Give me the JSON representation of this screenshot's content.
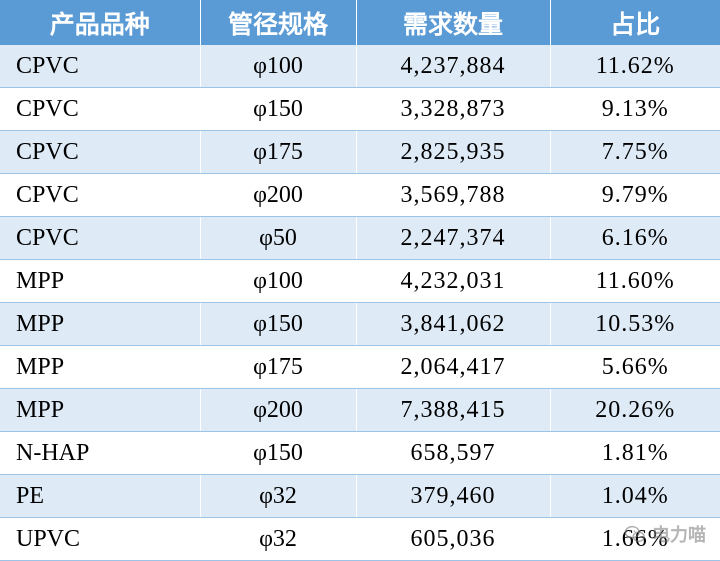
{
  "table": {
    "headers": [
      "产品品种",
      "管径规格",
      "需求数量",
      "占比"
    ],
    "rows": [
      [
        "CPVC",
        "φ100",
        "4,237,884",
        "11.62%"
      ],
      [
        "CPVC",
        "φ150",
        "3,328,873",
        "9.13%"
      ],
      [
        "CPVC",
        "φ175",
        "2,825,935",
        "7.75%"
      ],
      [
        "CPVC",
        "φ200",
        "3,569,788",
        "9.79%"
      ],
      [
        "CPVC",
        "φ50",
        "2,247,374",
        "6.16%"
      ],
      [
        "MPP",
        "φ100",
        "4,232,031",
        "11.60%"
      ],
      [
        "MPP",
        "φ150",
        "3,841,062",
        "10.53%"
      ],
      [
        "MPP",
        "φ175",
        "2,064,417",
        "5.66%"
      ],
      [
        "MPP",
        "φ200",
        "7,388,415",
        "20.26%"
      ],
      [
        "N-HAP",
        "φ150",
        "658,597",
        "1.81%"
      ],
      [
        "PE",
        "φ32",
        "379,460",
        "1.04%"
      ],
      [
        "UPVC",
        "φ32",
        "605,036",
        "1.66%"
      ]
    ]
  },
  "watermark": {
    "text": "电力喵",
    "icon": "wechat-icon"
  },
  "colors": {
    "header_bg": "#5b9bd5",
    "band_bg": "#deeaf6",
    "row_line": "#9dc3e6"
  }
}
